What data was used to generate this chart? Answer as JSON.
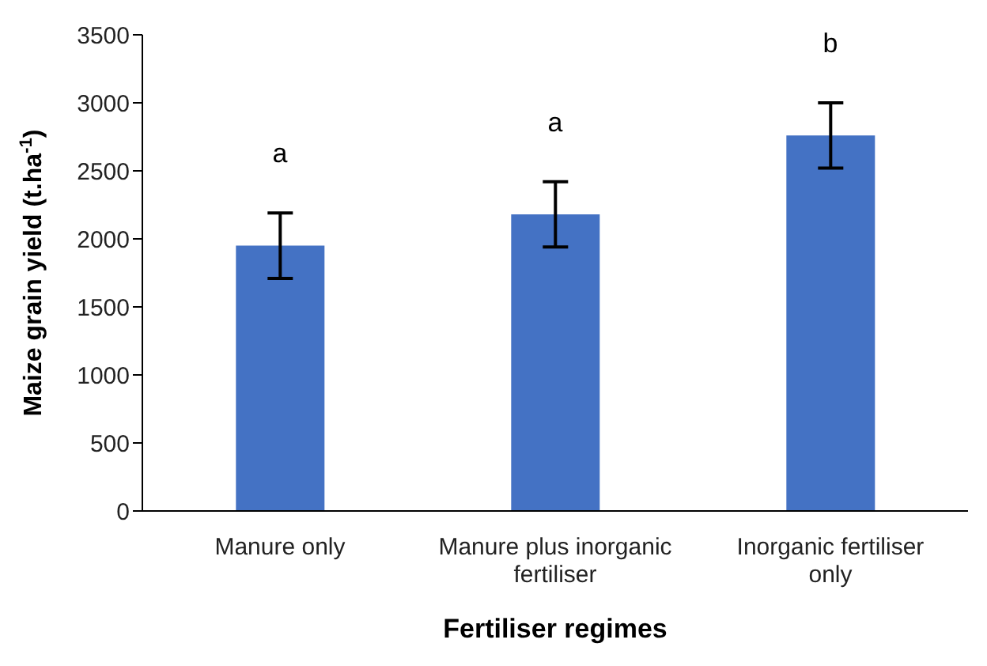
{
  "chart_data": {
    "type": "bar",
    "categories": [
      "Manure only",
      "Manure plus inorganic fertiliser",
      "Inorganic fertiliser only"
    ],
    "values": [
      1950,
      2180,
      2760
    ],
    "color": "#4472c4",
    "errors": [
      240,
      240,
      240
    ],
    "xlabel": "Fertiliser regimes",
    "ylabel": "Maize grain yield (t.ha$^{-1}$)",
    "ylim": [
      0,
      3500
    ],
    "yticks": [
      0,
      500,
      1000,
      1500,
      2000,
      2500,
      3000,
      3500
    ],
    "grid": false,
    "legend": false,
    "annotations": [
      "a",
      "a",
      "b"
    ]
  }
}
